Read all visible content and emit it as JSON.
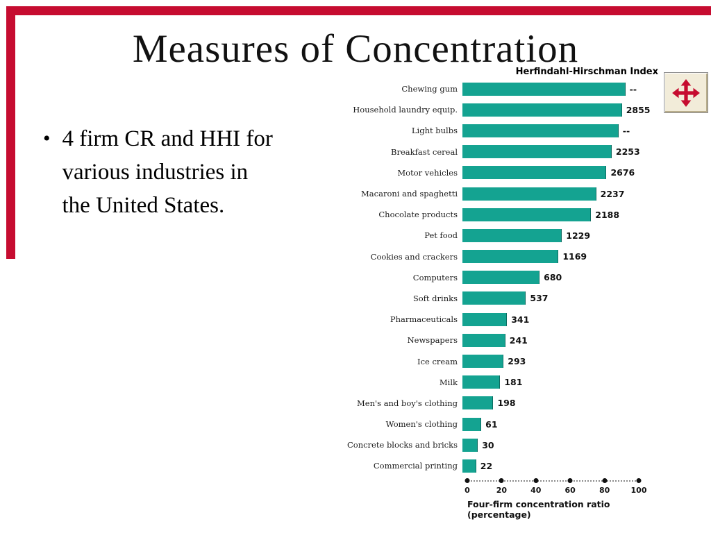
{
  "slide": {
    "title": "Measures of Concentration",
    "bullet": {
      "marker": "•",
      "text": "4 firm CR and HHI for various industries in the United States.",
      "lines": [
        "4 firm CR and HHI for",
        "various industries in",
        "the United States."
      ]
    }
  },
  "colors": {
    "accent_red": "#c60c30",
    "bar_teal": "#14a391",
    "icon_bg": "#f2ecd9"
  },
  "chart_data": {
    "type": "bar",
    "orientation": "horizontal",
    "title": "Herfindahl-Hirschman Index",
    "xlabel": "Four-firm concentration ratio (percentage)",
    "xlabel_line1": "Four-firm concentration ratio",
    "xlabel_line2": "(percentage)",
    "xlim": [
      0,
      100
    ],
    "xticks": [
      0,
      20,
      40,
      60,
      80,
      100
    ],
    "grid": false,
    "categories": [
      "Chewing gum",
      "Household laundry equip.",
      "Light bulbs",
      "Breakfast cereal",
      "Motor vehicles",
      "Macaroni and spaghetti",
      "Chocolate products",
      "Pet food",
      "Cookies and crackers",
      "Computers",
      "Soft drinks",
      "Pharmaceuticals",
      "Newspapers",
      "Ice cream",
      "Milk",
      "Men's and boy's clothing",
      "Women's clothing",
      "Concrete blocks and bricks",
      "Commercial printing"
    ],
    "series": [
      {
        "name": "Four-firm concentration ratio (percentage)",
        "values": [
          95,
          93,
          91,
          87,
          84,
          78,
          75,
          58,
          56,
          45,
          37,
          26,
          25,
          24,
          22,
          18,
          11,
          9,
          8
        ]
      },
      {
        "name": "Herfindahl-Hirschman Index",
        "values": [
          "--",
          "2855",
          "--",
          "2253",
          "2676",
          "2237",
          "2188",
          "1229",
          "1169",
          "680",
          "537",
          "341",
          "241",
          "293",
          "181",
          "198",
          "61",
          "30",
          "22"
        ]
      }
    ]
  }
}
